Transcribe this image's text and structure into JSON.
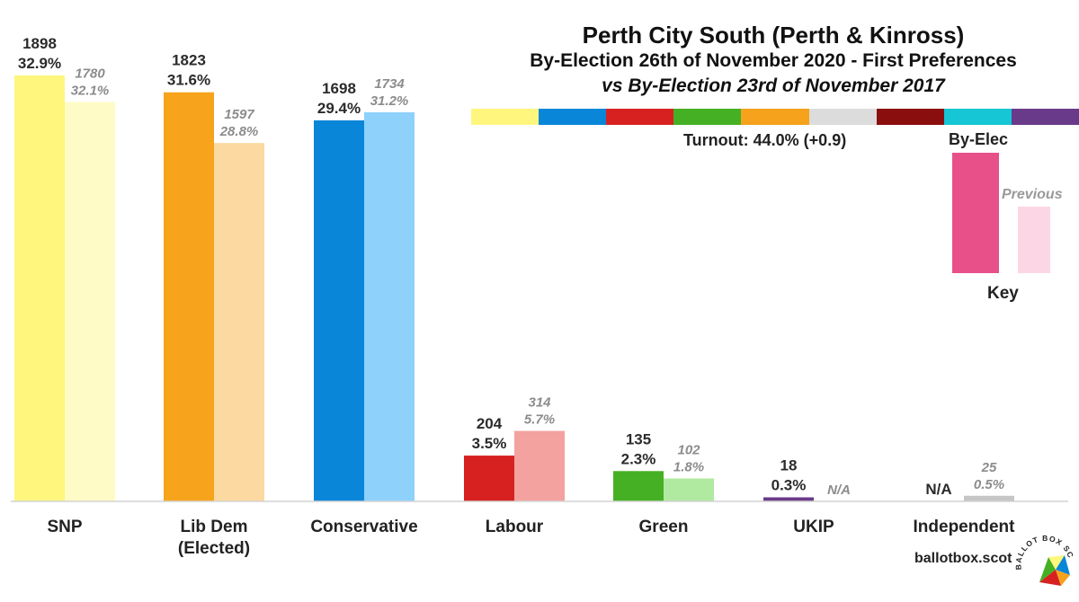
{
  "title": "Perth City South (Perth & Kinross)",
  "subtitle": "By-Election 26th of November 2020 - First Preferences",
  "subtitle2": "vs By-Election 23rd of November 2017",
  "turnout": "Turnout: 44.0% (+0.9)",
  "key": {
    "new_label": "By-Elec",
    "prev_label": "Previous",
    "title": "Key",
    "new_color": "#e8508a",
    "prev_color": "#fdd6e6"
  },
  "brand": "ballotbox.scot",
  "logo_text": "BALLOT BOX SCOTLAND",
  "party_colors": [
    "#fff67e",
    "#0a86d8",
    "#d72121",
    "#45b024",
    "#f6a21c",
    "#dcdcdc",
    "#8b0e0e",
    "#16c6d4",
    "#6a3a8a"
  ],
  "chart_data": {
    "type": "bar",
    "categories": [
      "SNP",
      "Lib Dem\n(Elected)",
      "Conservative",
      "Labour",
      "Green",
      "UKIP",
      "Independent"
    ],
    "series": [
      {
        "name": "By-Elec",
        "values": [
          1898,
          1823,
          1698,
          204,
          135,
          18,
          null
        ],
        "labels": [
          "1898\n32.9%",
          "1823\n31.6%",
          "1698\n29.4%",
          "204\n3.5%",
          "135\n2.3%",
          "18\n0.3%",
          "N/A"
        ],
        "colors": [
          "#fff67e",
          "#f7a31b",
          "#0a86d8",
          "#d72121",
          "#45b024",
          "#6a3a8a",
          "#c0c0c0"
        ]
      },
      {
        "name": "Previous",
        "values": [
          1780,
          1597,
          1734,
          314,
          102,
          null,
          25
        ],
        "labels": [
          "1780\n32.1%",
          "1597\n28.8%",
          "1734\n31.2%",
          "314\n5.7%",
          "102\n1.8%",
          "N/A",
          "25\n0.5%"
        ],
        "colors": [
          "#fffbc6",
          "#fbd9a0",
          "#8ed1fb",
          "#f3a29f",
          "#b0e9a0",
          "#d6c4e4",
          "#c6c6c6"
        ]
      }
    ],
    "ylim": [
      0,
      1930
    ],
    "grid": false,
    "legend": "right"
  }
}
